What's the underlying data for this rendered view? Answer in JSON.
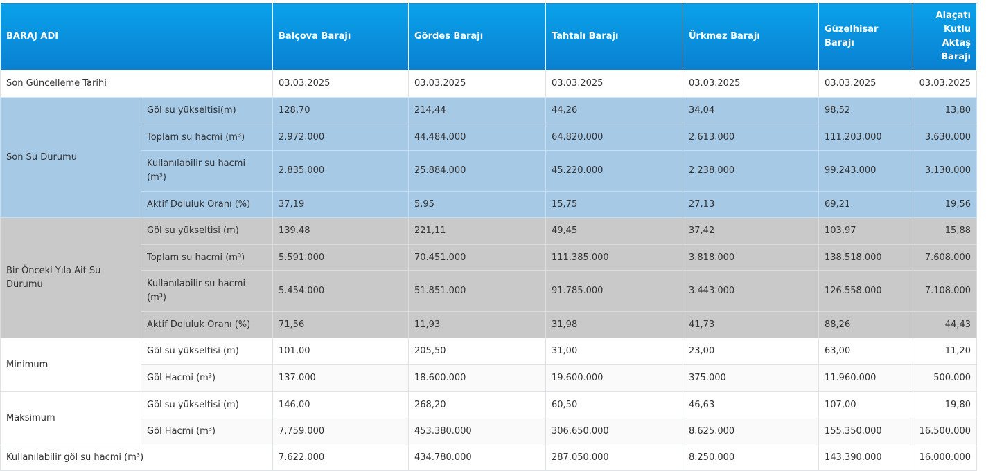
{
  "header": {
    "title": "BARAJ ADI",
    "dams": [
      "Balçova Barajı",
      "Gördes Barajı",
      "Tahtalı Barajı",
      "Ürkmez Barajı",
      "Güzelhisar Barajı",
      "Alaçatı Kutlu Aktaş Barajı"
    ]
  },
  "updated": {
    "label": "Son Güncelleme Tarihi",
    "values": [
      "03.03.2025",
      "03.03.2025",
      "03.03.2025",
      "03.03.2025",
      "03.03.2025",
      "03.03.2025"
    ]
  },
  "groups": [
    {
      "label": "Son Su Durumu",
      "rows": [
        {
          "label": "Göl su yükseltisi(m)",
          "values": [
            "128,70",
            "214,44",
            "44,26",
            "34,04",
            "98,52",
            "13,80"
          ]
        },
        {
          "label": "Toplam su hacmi (m³)",
          "values": [
            "2.972.000",
            "44.484.000",
            "64.820.000",
            "2.613.000",
            "111.203.000",
            "3.630.000"
          ]
        },
        {
          "label": "Kullanılabilir su hacmi (m³)",
          "values": [
            "2.835.000",
            "25.884.000",
            "45.220.000",
            "2.238.000",
            "99.243.000",
            "3.130.000"
          ]
        },
        {
          "label": "Aktif Doluluk Oranı (%)",
          "values": [
            "37,19",
            "5,95",
            "15,75",
            "27,13",
            "69,21",
            "19,56"
          ]
        }
      ]
    },
    {
      "label": "Bir Önceki Yıla Ait Su Durumu",
      "rows": [
        {
          "label": "Göl su yükseltisi (m)",
          "values": [
            "139,48",
            "221,11",
            "49,45",
            "37,42",
            "103,97",
            "15,88"
          ]
        },
        {
          "label": "Toplam su hacmi (m³)",
          "values": [
            "5.591.000",
            "70.451.000",
            "111.385.000",
            "3.818.000",
            "138.518.000",
            "7.608.000"
          ]
        },
        {
          "label": "Kullanılabilir su hacmi (m³)",
          "values": [
            "5.454.000",
            "51.851.000",
            "91.785.000",
            "3.443.000",
            "126.558.000",
            "7.108.000"
          ]
        },
        {
          "label": "Aktif Doluluk Oranı (%)",
          "values": [
            "71,56",
            "11,93",
            "31,98",
            "41,73",
            "88,26",
            "44,43"
          ]
        }
      ]
    },
    {
      "label": "Minimum",
      "rows": [
        {
          "label": "Göl su yükseltisi (m)",
          "values": [
            "101,00",
            "205,50",
            "31,00",
            "23,00",
            "63,00",
            "11,20"
          ]
        },
        {
          "label": "Göl Hacmi (m³)",
          "values": [
            "137.000",
            "18.600.000",
            "19.600.000",
            "375.000",
            "11.960.000",
            "500.000"
          ]
        }
      ]
    },
    {
      "label": "Maksimum",
      "rows": [
        {
          "label": "Göl su yükseltisi (m)",
          "values": [
            "146,00",
            "268,20",
            "60,50",
            "46,63",
            "107,00",
            "19,80"
          ]
        },
        {
          "label": "Göl Hacmi (m³)",
          "values": [
            "7.759.000",
            "453.380.000",
            "306.650.000",
            "8.625.000",
            "155.350.000",
            "16.500.000"
          ]
        }
      ]
    }
  ],
  "usable": {
    "label": "Kullanılabilir göl su hacmi (m³)",
    "values": [
      "7.622.000",
      "434.780.000",
      "287.050.000",
      "8.250.000",
      "143.390.000",
      "16.000.000"
    ]
  }
}
